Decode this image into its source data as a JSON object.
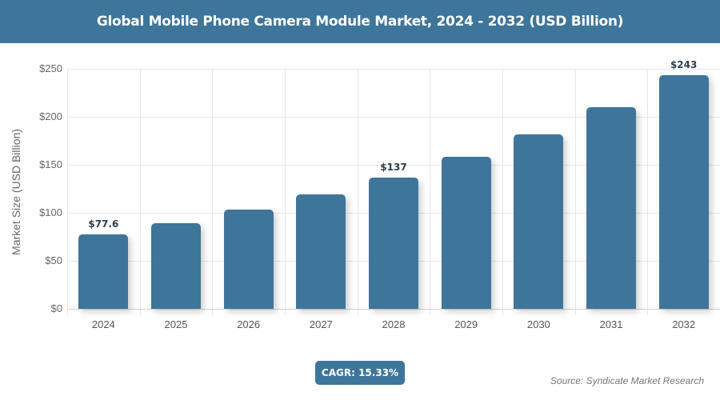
{
  "header": {
    "title": "Global Mobile Phone Camera Module Market, 2024 - 2032 (USD Billion)"
  },
  "footer": {
    "cagr": "CAGR: 15.33%",
    "source": "Source: Syndicate Market Research"
  },
  "colors": {
    "bar": "#3e759b",
    "header_bg": "#3e759b"
  },
  "chart_data": {
    "type": "bar",
    "title": "Global Mobile Phone Camera Module Market, 2024 - 2032 (USD Billion)",
    "xlabel": "",
    "ylabel": "Market Size (USD Billion)",
    "categories": [
      "2024",
      "2025",
      "2026",
      "2027",
      "2028",
      "2029",
      "2030",
      "2031",
      "2032"
    ],
    "values": [
      77.6,
      89,
      103,
      119,
      137,
      158,
      182,
      210,
      243
    ],
    "data_labels": {
      "0": "$77.6",
      "4": "$137",
      "8": "$243"
    },
    "ylim": [
      0,
      250
    ],
    "yticks": [
      "$0",
      "$50",
      "$100",
      "$150",
      "$200",
      "$250"
    ],
    "grid": true,
    "legend": null,
    "annotations": [
      "CAGR: 15.33%"
    ]
  }
}
